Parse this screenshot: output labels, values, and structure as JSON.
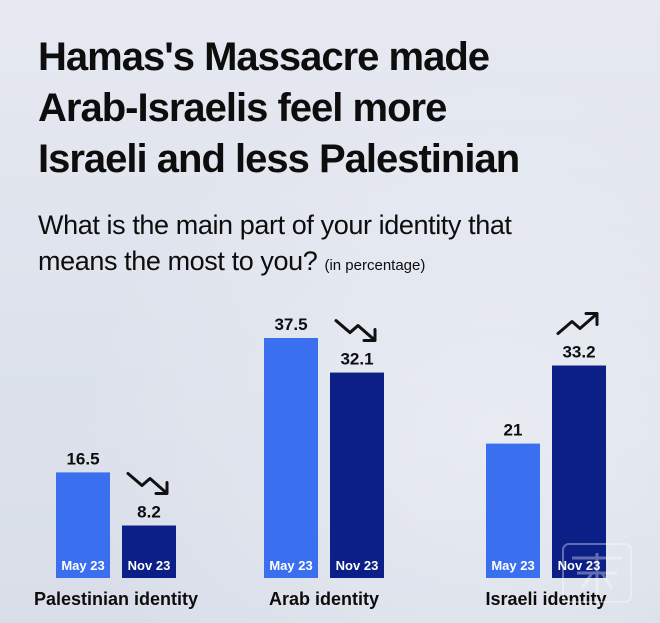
{
  "title_lines": [
    "Hamas's Massacre made",
    "Arab-Israelis feel more",
    "Israeli and less Palestinian"
  ],
  "subtitle": {
    "line1": "What is the main part of your identity that",
    "line2": "means the most to you?",
    "note": "(in percentage)"
  },
  "colors": {
    "may": "#3a6ff0",
    "nov": "#0b1f86",
    "bar_label": "#ffffff",
    "text": "#0d0d0d"
  },
  "chart_data": {
    "type": "bar",
    "categories": [
      "Palestinian identity",
      "Arab identity",
      "Israeli identity"
    ],
    "series": [
      {
        "name": "May 23",
        "values": [
          16.5,
          37.5,
          21
        ]
      },
      {
        "name": "Nov 23",
        "values": [
          8.2,
          32.1,
          33.2
        ]
      }
    ],
    "value_labels": [
      [
        "16.5",
        "8.2"
      ],
      [
        "37.5",
        "32.1"
      ],
      [
        "21",
        "33.2"
      ]
    ],
    "trend_icons": [
      "trend-down-icon",
      "trend-down-icon",
      "trend-up-icon"
    ],
    "grid": false,
    "legend": "none"
  }
}
